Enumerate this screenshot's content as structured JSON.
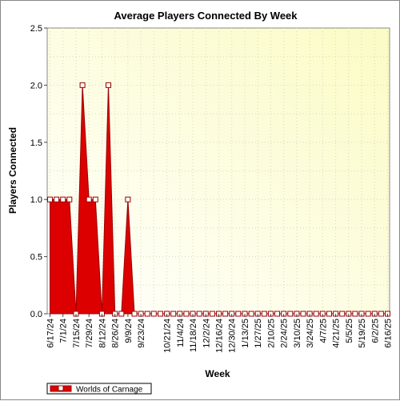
{
  "chart_data": {
    "type": "area",
    "title": "Average Players Connected By Week",
    "xlabel": "Week",
    "ylabel": "Players Connected",
    "ylim": [
      0,
      2.5
    ],
    "yticks": [
      "0.0",
      "0.5",
      "1.0",
      "1.5",
      "2.0",
      "2.5"
    ],
    "x_tick_labels": [
      "6/17/24",
      "7/1/24",
      "7/15/24",
      "7/29/24",
      "8/12/24",
      "8/26/24",
      "9/9/24",
      "9/23/24",
      "10/21/24",
      "11/4/24",
      "11/18/24",
      "12/2/24",
      "12/16/24",
      "12/30/24",
      "1/13/25",
      "1/27/25",
      "2/10/25",
      "2/24/25",
      "3/10/25",
      "3/24/25",
      "4/7/25",
      "4/21/25",
      "5/5/25",
      "5/19/25",
      "6/2/25",
      "6/16/25"
    ],
    "x": [
      "6/17/24",
      "6/24/24",
      "7/1/24",
      "7/8/24",
      "7/15/24",
      "7/22/24",
      "7/29/24",
      "8/5/24",
      "8/12/24",
      "8/19/24",
      "8/26/24",
      "9/2/24",
      "9/9/24",
      "9/16/24",
      "9/23/24",
      "9/30/24",
      "10/7/24",
      "10/14/24",
      "10/21/24",
      "10/28/24",
      "11/4/24",
      "11/11/24",
      "11/18/24",
      "11/25/24",
      "12/2/24",
      "12/9/24",
      "12/16/24",
      "12/23/24",
      "12/30/24",
      "1/6/25",
      "1/13/25",
      "1/20/25",
      "1/27/25",
      "2/3/25",
      "2/10/25",
      "2/17/25",
      "2/24/25",
      "3/3/25",
      "3/10/25",
      "3/17/25",
      "3/24/25",
      "3/31/25",
      "4/7/25",
      "4/14/25",
      "4/21/25",
      "4/28/25",
      "5/5/25",
      "5/12/25",
      "5/19/25",
      "5/26/25",
      "6/2/25",
      "6/9/25",
      "6/16/25"
    ],
    "series": [
      {
        "name": "Worlds of Carnage",
        "color": "#dd0000",
        "values": [
          1,
          1,
          1,
          1,
          0,
          2,
          1,
          1,
          0,
          2,
          0,
          0,
          1,
          0,
          0,
          0,
          0,
          0,
          0,
          0,
          0,
          0,
          0,
          0,
          0,
          0,
          0,
          0,
          0,
          0,
          0,
          0,
          0,
          0,
          0,
          0,
          0,
          0,
          0,
          0,
          0,
          0,
          0,
          0,
          0,
          0,
          0,
          0,
          0,
          0,
          0,
          0,
          0
        ]
      }
    ],
    "grid": true,
    "legend_position": "bottom-left"
  }
}
